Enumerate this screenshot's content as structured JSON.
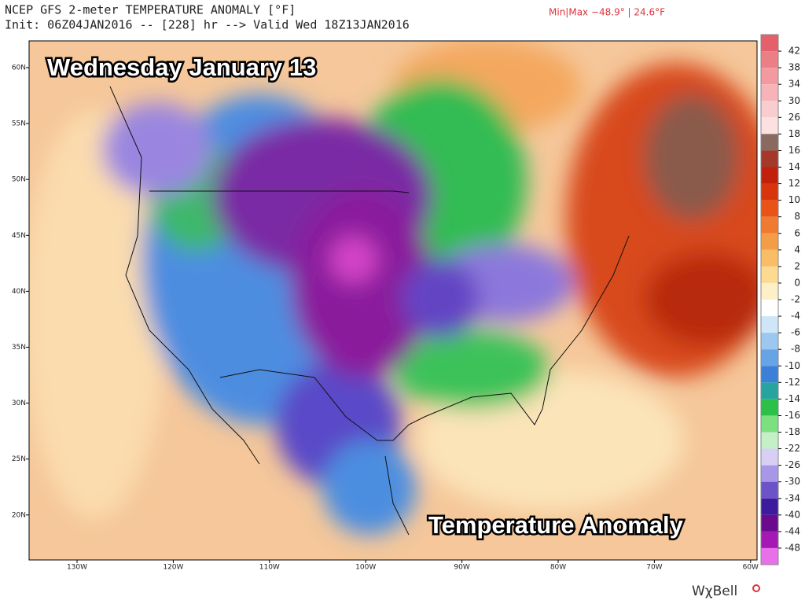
{
  "header": {
    "title": "NCEP GFS 2-meter TEMPERATURE ANOMALY [°F]",
    "init": "Init: 06Z04JAN2016 -- [228] hr --> Valid Wed 18Z13JAN2016",
    "minmax": "Min|Max −48.9° | 24.6°F"
  },
  "overlay": {
    "day": "Wednesday January 13",
    "product": "Temperature Anomaly"
  },
  "map": {
    "lat_labels": [
      "60N",
      "55N",
      "50N",
      "45N",
      "40N",
      "35N",
      "30N",
      "25N",
      "20N"
    ],
    "lon_labels": [
      "130W",
      "120W",
      "110W",
      "100W",
      "90W",
      "80W",
      "70W",
      "60W"
    ]
  },
  "colorbar": {
    "labels": [
      "42",
      "38",
      "34",
      "30",
      "26",
      "18",
      "16",
      "14",
      "12",
      "10",
      "8",
      "6",
      "4",
      "2",
      "0",
      "-2",
      "-4",
      "-6",
      "-8",
      "-10",
      "-12",
      "-14",
      "-16",
      "-18",
      "-22",
      "-26",
      "-30",
      "-34",
      "-40",
      "-44",
      "-48"
    ],
    "colors": [
      "#e4606a",
      "#ec7e86",
      "#f29aa0",
      "#f6b4b8",
      "#f9ccd0",
      "#fce0e2",
      "#8a6a5e",
      "#a4382a",
      "#c0200c",
      "#d8340e",
      "#e85418",
      "#f07a30",
      "#f59c48",
      "#f9bd68",
      "#fbda92",
      "#fdf0c8",
      "#ffffff",
      "#cfe6f8",
      "#9cc8f0",
      "#66a4e6",
      "#3c7fd8",
      "#28a4a0",
      "#2cc048",
      "#7ce080",
      "#c4f0c8",
      "#d8d0f4",
      "#a896e6",
      "#6c54c8",
      "#3c1c9c",
      "#6a0a8c",
      "#a418b4",
      "#e870e8"
    ]
  },
  "logo": "WχBell"
}
